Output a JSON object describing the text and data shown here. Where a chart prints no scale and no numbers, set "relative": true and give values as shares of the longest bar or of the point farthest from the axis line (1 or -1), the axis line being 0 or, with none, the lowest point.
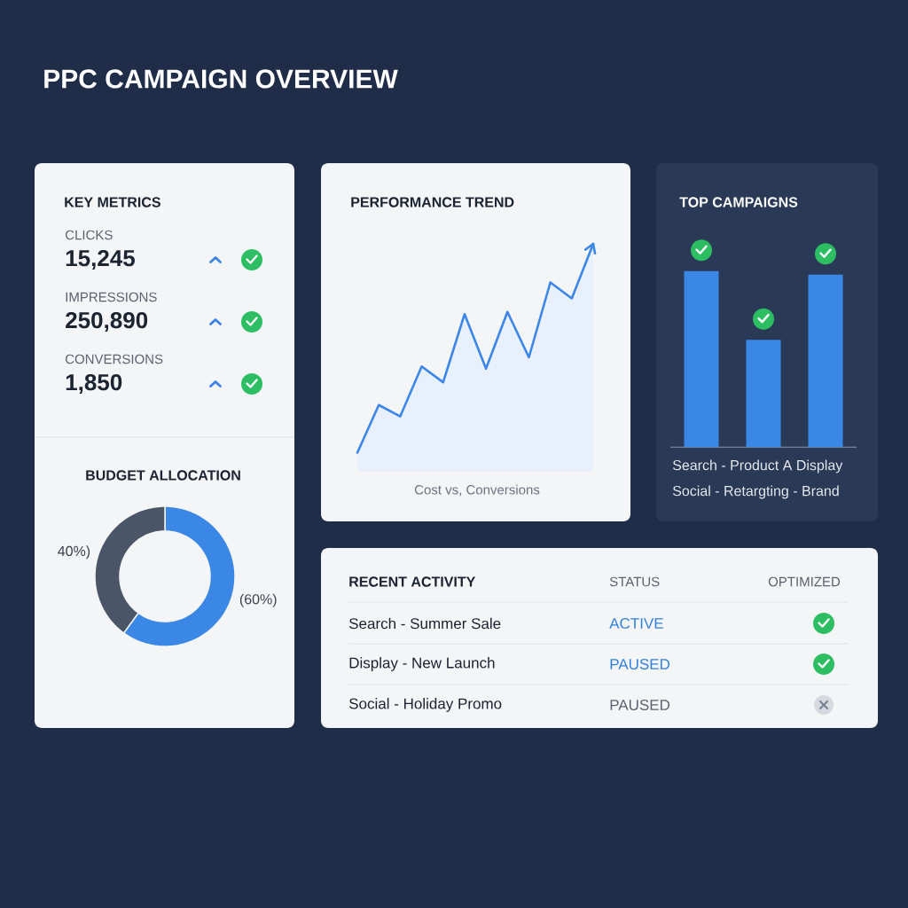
{
  "chart_data": [
    {
      "type": "other",
      "title": "PPC CAMPAIGN OVERVIEW"
    },
    {
      "type": "other",
      "title": "KEY METRICS",
      "categories": [
        "CLICKS",
        "IMPRESSIONS",
        "CONVERSIONS"
      ],
      "value_labels": [
        "15,245",
        "250,890",
        "1,850"
      ]
    },
    {
      "type": "area",
      "title": "PERFORMANCE TREND",
      "xlabel": "Cost vs, Conversions",
      "relative": true,
      "categories": [
        null,
        null,
        null,
        null,
        null,
        null,
        null,
        null,
        null,
        null,
        null,
        null
      ],
      "values": [
        0.08,
        0.29,
        0.24,
        0.46,
        0.39,
        0.69,
        0.45,
        0.7,
        0.5,
        0.83,
        0.76,
        1.0
      ],
      "color": "#3b86e8"
    },
    {
      "type": "bar",
      "title": "TOP CAMPAIGNS",
      "relative": true,
      "categories": [
        null,
        null,
        null
      ],
      "values": [
        1.0,
        0.61,
        0.98
      ],
      "color": "#3b87e6",
      "annotations": [
        "Search - Product A Display",
        "Social - Retargting - Brand"
      ]
    },
    {
      "type": "donut",
      "title": "BUDGET ALLOCATION",
      "categories": [
        null,
        null
      ],
      "values": [
        60,
        40
      ],
      "colors": [
        "#3b87e6",
        "#4a5568"
      ],
      "value_labels": [
        "(60%)",
        "40%)"
      ]
    },
    {
      "type": "other",
      "title": "RECENT ACTIVITY",
      "categories": [
        "Search - Summer Sale",
        "Display - New Launch",
        "Social - Holiday Promo"
      ],
      "value_labels": [
        "ACTIVE",
        "PAUSED",
        "PAUSED"
      ],
      "annotations": [
        "STATUS",
        "OPTIMIZED"
      ]
    }
  ]
}
